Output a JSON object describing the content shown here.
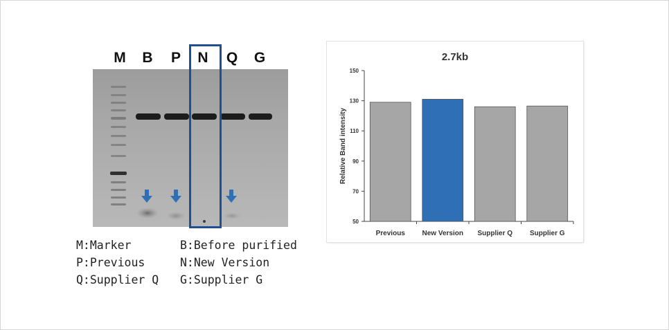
{
  "gel": {
    "lanes": [
      "M",
      "B",
      "P",
      "N",
      "Q",
      "G"
    ],
    "legend": [
      [
        "M:Marker",
        "B:Before purified"
      ],
      [
        "P:Previous",
        "N:New Version"
      ],
      [
        "Q:Supplier Q",
        "G:Supplier G"
      ]
    ],
    "highlight_color": "#1f4f8f",
    "arrow_color": "#2e6fb5"
  },
  "chart_data": {
    "type": "bar",
    "title": "2.7kb",
    "categories": [
      "Previous",
      "New Version",
      "Supplier Q",
      "Supplier G"
    ],
    "values": [
      129,
      131,
      126,
      126.5
    ],
    "ylabel": "Relative Band intensity",
    "xlabel": "",
    "ylim": [
      50,
      150
    ],
    "yticks": [
      "50",
      "70",
      "90",
      "110",
      "130",
      "150"
    ],
    "bar_colors": [
      "#a6a6a6",
      "#2e6fb5",
      "#a6a6a6",
      "#a6a6a6"
    ],
    "grid": false
  }
}
